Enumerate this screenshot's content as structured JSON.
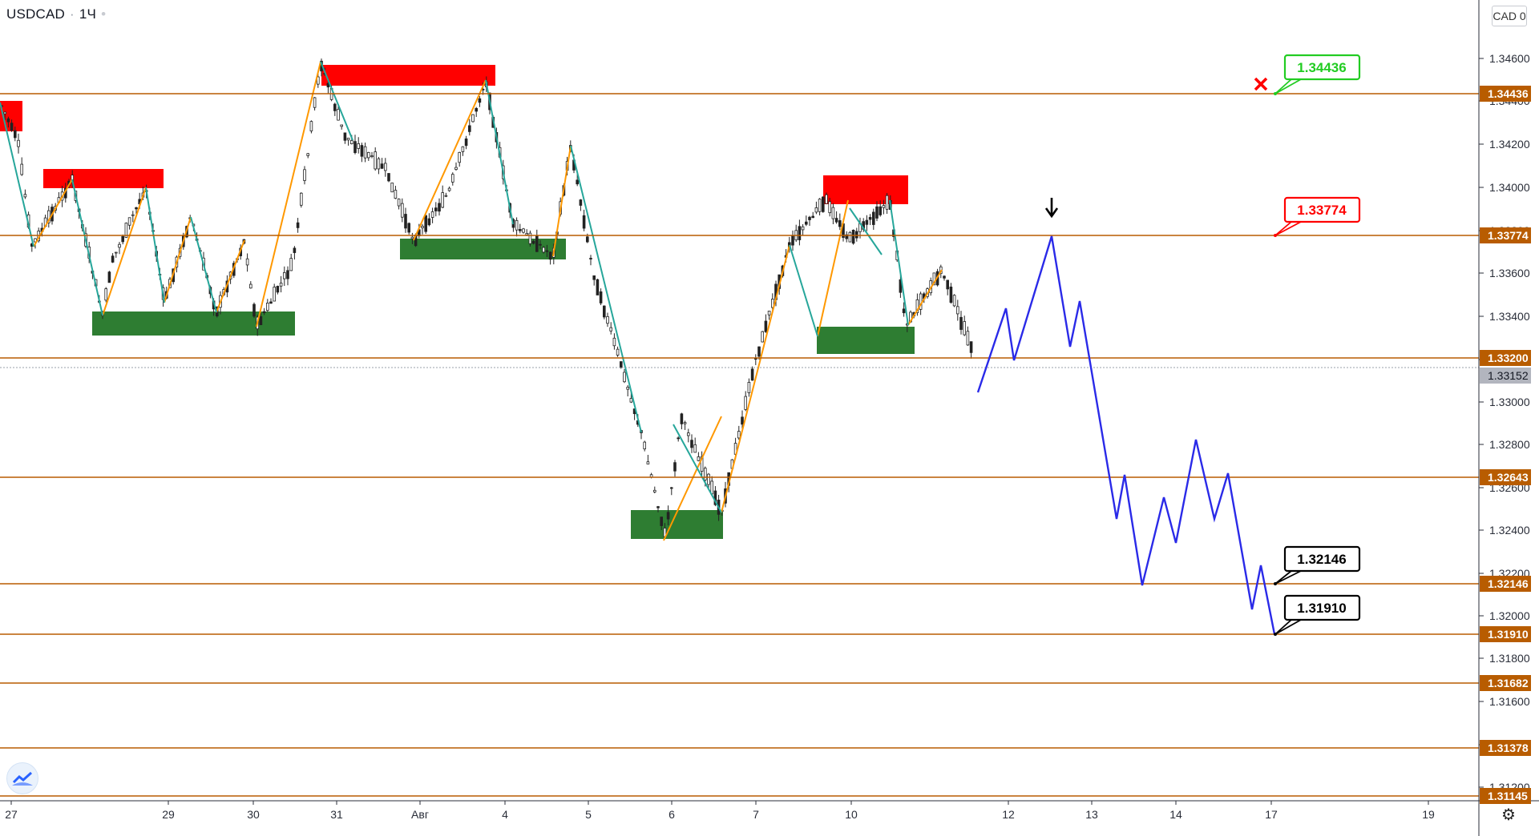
{
  "symbol": "USDCAD",
  "timeframe": "1Ч",
  "currency_button": "CAD 0",
  "icons": [
    "tradingview-logo-icon",
    "settings-gear-icon",
    "arrow-down-icon",
    "cross-icon"
  ],
  "colors": {
    "level_line": "#b85c00",
    "supply_zone": "#ff0000",
    "demand_zone": "#2e7d32",
    "forecast_path": "#2a2ae8",
    "zigzag_up": "#ff9800",
    "zigzag_down": "#26a69a",
    "callout_green": "#22cc22",
    "callout_red": "#ff0000",
    "callout_black": "#000000"
  },
  "price_axis": {
    "ticks": [
      "1.34600",
      "1.34400",
      "1.34200",
      "1.34000",
      "1.33800",
      "1.33600",
      "1.33400",
      "1.33200",
      "1.33000",
      "1.32800",
      "1.32600",
      "1.32400",
      "1.32200",
      "1.32000",
      "1.31800",
      "1.31600",
      "1.31400",
      "1.31200"
    ],
    "level_labels": [
      "1.34436",
      "1.33774",
      "1.33200",
      "1.32643",
      "1.32146",
      "1.31910",
      "1.31682",
      "1.31378",
      "1.31145"
    ],
    "current_price": "1.33152"
  },
  "time_axis": {
    "labels": [
      "27",
      "29",
      "30",
      "31",
      "Авг",
      "4",
      "5",
      "6",
      "7",
      "10",
      "12",
      "13",
      "14",
      "17",
      "19"
    ]
  },
  "callouts": [
    {
      "text": "1.34436",
      "style": "green"
    },
    {
      "text": "1.33774",
      "style": "red"
    },
    {
      "text": "1.32146",
      "style": "black"
    },
    {
      "text": "1.31910",
      "style": "black"
    }
  ]
}
